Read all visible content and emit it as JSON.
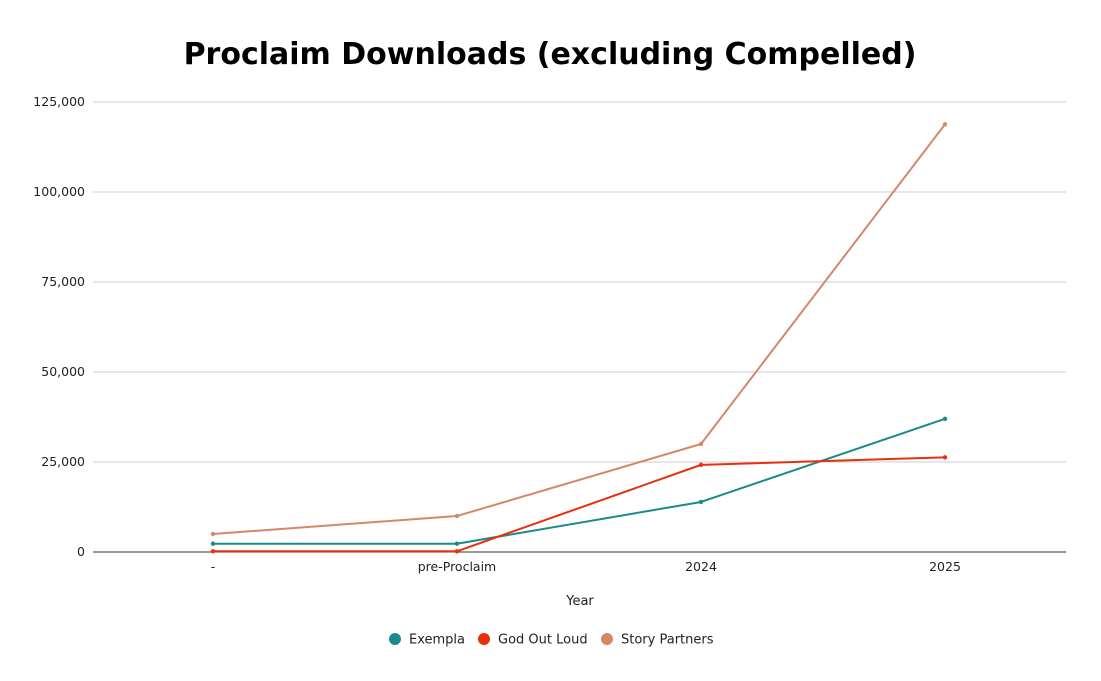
{
  "chart_data": {
    "type": "line",
    "title": "Proclaim Downloads (excluding Compelled)",
    "xlabel": "Year",
    "ylabel": "",
    "categories": [
      "-",
      "pre-Proclaim",
      "2024",
      "2025"
    ],
    "ylim": [
      0,
      125000
    ],
    "yticks": [
      0,
      25000,
      50000,
      75000,
      100000,
      125000
    ],
    "ytick_labels": [
      "0",
      "25,000",
      "50,000",
      "75,000",
      "100,000",
      "125,000"
    ],
    "grid": true,
    "legend_position": "bottom",
    "series": [
      {
        "name": "Exempla",
        "color": "#1a8a8a",
        "values": [
          2300,
          2300,
          13900,
          37000
        ]
      },
      {
        "name": "God Out Loud",
        "color": "#e8300c",
        "values": [
          200,
          200,
          24200,
          26300
        ]
      },
      {
        "name": "Story Partners",
        "color": "#d4886a",
        "values": [
          5000,
          10000,
          30000,
          118800
        ]
      }
    ]
  }
}
